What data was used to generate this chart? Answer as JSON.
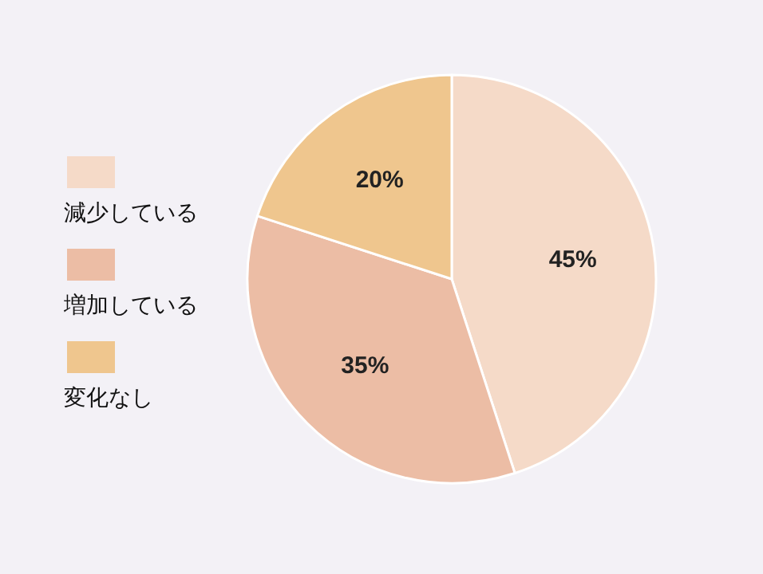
{
  "chart_data": {
    "type": "pie",
    "categories": [
      "減少している",
      "増加している",
      "変化なし"
    ],
    "values": [
      45,
      35,
      20
    ],
    "colors": [
      "#f5dac8",
      "#ecbda5",
      "#efc68e"
    ],
    "value_labels": [
      "45%",
      "35%",
      "20%"
    ],
    "legend": "left"
  }
}
